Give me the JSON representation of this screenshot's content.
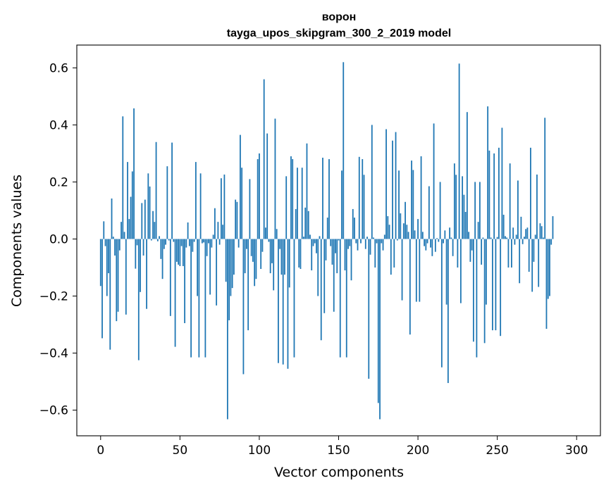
{
  "chart_data": {
    "type": "bar",
    "title_line1": "ворон",
    "title_line2": "tayga_upos_skipgram_300_2_2019 model",
    "xlabel": "Vector components",
    "ylabel": "Components values",
    "xlim": [
      -15,
      315
    ],
    "ylim": [
      -0.69,
      0.68
    ],
    "xticks": [
      0,
      50,
      100,
      150,
      200,
      250,
      300
    ],
    "xtick_labels": [
      "0",
      "50",
      "100",
      "150",
      "200",
      "250",
      "300"
    ],
    "yticks": [
      -0.6,
      -0.4,
      -0.2,
      0.0,
      0.2,
      0.4,
      0.6
    ],
    "ytick_labels": [
      "−0.6",
      "−0.4",
      "−0.2",
      "0.0",
      "0.2",
      "0.4",
      "0.6"
    ],
    "bar_color": "#1f77b4",
    "values": [
      -0.165,
      -0.348,
      0.062,
      -0.025,
      -0.2,
      -0.12,
      -0.388,
      0.142,
      0.008,
      -0.058,
      -0.288,
      -0.255,
      -0.04,
      0.06,
      0.43,
      0.025,
      -0.265,
      0.27,
      0.07,
      0.148,
      0.237,
      0.458,
      -0.104,
      -0.022,
      -0.425,
      -0.186,
      0.126,
      -0.058,
      0.138,
      -0.245,
      0.23,
      0.184,
      -0.005,
      0.098,
      0.06,
      0.34,
      -0.008,
      0.01,
      -0.07,
      -0.14,
      -0.035,
      -0.02,
      0.255,
      -0.005,
      -0.27,
      0.338,
      -0.01,
      -0.378,
      -0.08,
      -0.09,
      -0.095,
      -0.025,
      -0.095,
      -0.295,
      -0.03,
      0.058,
      -0.025,
      -0.415,
      -0.045,
      -0.01,
      0.27,
      -0.2,
      -0.415,
      0.23,
      -0.015,
      -0.012,
      -0.415,
      -0.06,
      -0.015,
      -0.195,
      -0.03,
      0.015,
      0.108,
      -0.233,
      0.06,
      -0.02,
      0.213,
      0.05,
      0.226,
      -0.15,
      -0.632,
      -0.285,
      -0.2,
      -0.172,
      -0.125,
      0.138,
      0.13,
      -0.03,
      0.365,
      0.25,
      -0.474,
      -0.12,
      -0.035,
      -0.32,
      0.21,
      -0.06,
      -0.08,
      -0.165,
      -0.14,
      0.28,
      0.3,
      -0.105,
      -0.045,
      0.56,
      0.04,
      0.37,
      -0.01,
      -0.12,
      -0.085,
      -0.18,
      0.422,
      0.035,
      -0.435,
      -0.035,
      -0.125,
      -0.44,
      -0.125,
      0.22,
      -0.455,
      -0.17,
      0.29,
      0.28,
      -0.415,
      0.105,
      0.25,
      -0.1,
      -0.105,
      0.25,
      0.008,
      0.11,
      0.335,
      0.098,
      0.015,
      -0.11,
      -0.025,
      -0.015,
      -0.05,
      -0.2,
      0.01,
      -0.355,
      0.285,
      -0.26,
      -0.075,
      0.075,
      0.28,
      -0.025,
      -0.09,
      -0.255,
      -0.05,
      -0.12,
      -0.005,
      -0.415,
      0.24,
      0.62,
      -0.11,
      -0.415,
      -0.035,
      -0.025,
      -0.145,
      0.105,
      0.075,
      -0.015,
      -0.04,
      0.288,
      -0.015,
      0.28,
      0.225,
      -0.035,
      0.008,
      -0.49,
      -0.055,
      0.4,
      0.005,
      -0.1,
      -0.015,
      -0.575,
      -0.632,
      -0.015,
      -0.04,
      0.015,
      0.385,
      0.08,
      0.05,
      -0.125,
      0.345,
      -0.1,
      0.375,
      -0.005,
      0.24,
      0.09,
      -0.215,
      0.055,
      0.13,
      0.05,
      0.025,
      -0.335,
      0.275,
      0.242,
      0.03,
      -0.22,
      0.07,
      -0.22,
      0.29,
      0.025,
      -0.025,
      -0.04,
      -0.015,
      0.185,
      -0.03,
      -0.06,
      0.405,
      -0.045,
      0.003,
      -0.01,
      0.2,
      -0.45,
      -0.015,
      0.03,
      -0.23,
      -0.505,
      0.04,
      0.005,
      -0.06,
      0.265,
      0.225,
      -0.1,
      0.615,
      -0.225,
      0.22,
      0.155,
      0.095,
      0.445,
      0.025,
      -0.08,
      -0.04,
      -0.36,
      0.2,
      -0.415,
      0.06,
      0.2,
      -0.09,
      0.005,
      -0.365,
      -0.23,
      0.465,
      0.31,
      0.005,
      -0.32,
      0.3,
      -0.32,
      0.007,
      0.32,
      -0.34,
      0.39,
      0.085,
      0.01,
      0.005,
      -0.1,
      0.265,
      -0.1,
      0.04,
      -0.02,
      0.015,
      0.205,
      -0.155,
      0.078,
      -0.018,
      0.008,
      0.035,
      0.04,
      -0.115,
      0.32,
      -0.185,
      -0.08,
      0.015,
      0.226,
      -0.168,
      0.055,
      0.045,
      0.005,
      0.425,
      -0.315,
      -0.21,
      -0.2,
      -0.02,
      0.08
    ]
  }
}
